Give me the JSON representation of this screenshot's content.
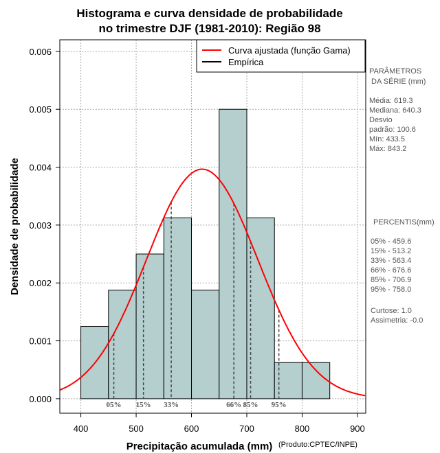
{
  "chart_data": {
    "type": "bar",
    "title_line1": "Histograma e curva densidade de probabilidade",
    "title_line2": "no trimestre DJF (1981-2010): Região 98",
    "xlabel": "Precipitação acumulada (mm)",
    "ylabel": "Densidade de probabilidade",
    "credit": "(Produto:CPTEC/INPE)",
    "xlim": [
      362,
      915
    ],
    "ylim": [
      -0.00025,
      0.0062
    ],
    "xticks": [
      400,
      500,
      600,
      700,
      800,
      900
    ],
    "yticks": [
      "0.000",
      "0.001",
      "0.002",
      "0.003",
      "0.004",
      "0.005",
      "0.006"
    ],
    "bins": [
      {
        "start": 400,
        "end": 450,
        "density": 0.00125
      },
      {
        "start": 450,
        "end": 500,
        "density": 0.001875
      },
      {
        "start": 500,
        "end": 550,
        "density": 0.0025
      },
      {
        "start": 550,
        "end": 600,
        "density": 0.003125
      },
      {
        "start": 600,
        "end": 650,
        "density": 0.001875
      },
      {
        "start": 650,
        "end": 700,
        "density": 0.005
      },
      {
        "start": 700,
        "end": 750,
        "density": 0.003125
      },
      {
        "start": 750,
        "end": 800,
        "density": 0.000625
      },
      {
        "start": 800,
        "end": 850,
        "density": 0.000625
      }
    ],
    "curve": {
      "mean": 619.3,
      "sd": 100.6
    },
    "legend": [
      {
        "label": "Curva ajustada (função Gama)",
        "color": "#ff0000"
      },
      {
        "label": "Empírica",
        "color": "#000000"
      }
    ],
    "percentile_lines": [
      {
        "label": "05%",
        "value": 459.6
      },
      {
        "label": "15%",
        "value": 513.2
      },
      {
        "label": "33%",
        "value": 563.4
      },
      {
        "label": "66%",
        "value": 676.6
      },
      {
        "label": "85%",
        "value": 706.9
      },
      {
        "label": "95%",
        "value": 758.0
      }
    ],
    "bar_color": "#b5cece",
    "curve_color": "#ff0000",
    "stats_panel": {
      "header1": "PARÂMETROS",
      "header2": "DA SÉRIE (mm)",
      "lines": [
        "Média:  619.3",
        "Mediana:  640.3",
        "Desvio",
        "padrão:  100.6",
        "Mín:  433.5",
        "Máx:  843.2"
      ]
    },
    "percentiles_panel": {
      "header": "PERCENTIS(mm)",
      "lines": [
        "05% -   459.6",
        "15% -   513.2",
        "33% -   563.4",
        "66% -   676.6",
        "85% -   706.9",
        "95% -   758.0"
      ],
      "extra": [
        "Curtose:  1.0",
        "Assimetria:  -0.0"
      ]
    }
  }
}
